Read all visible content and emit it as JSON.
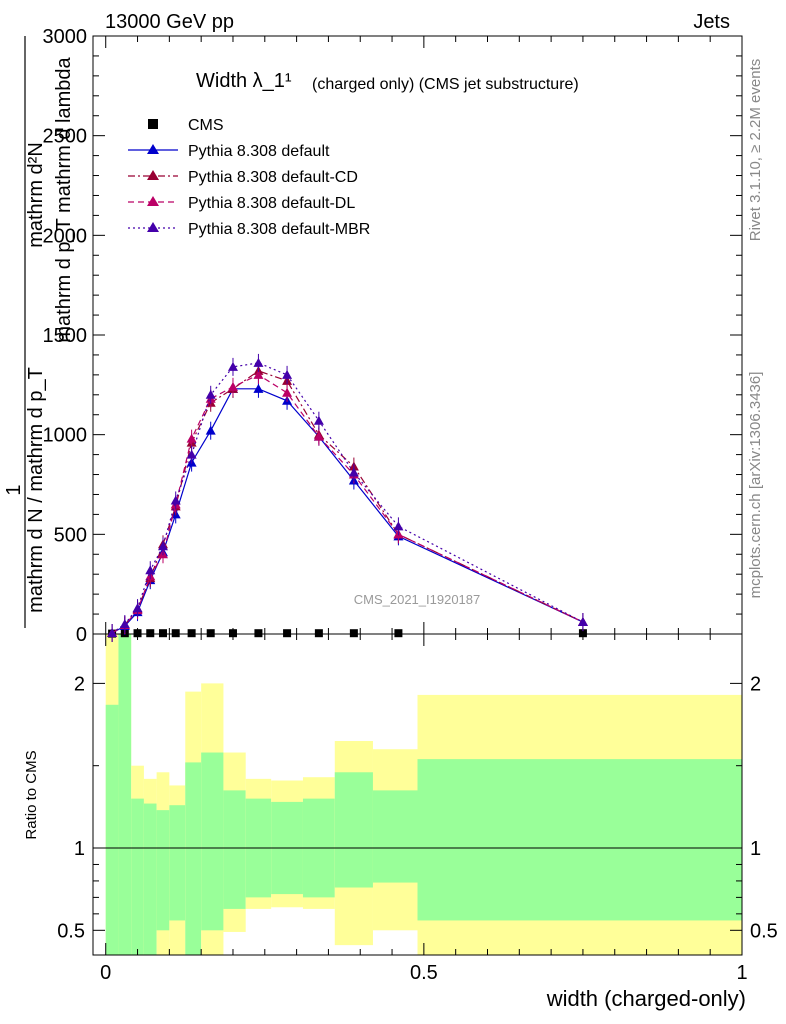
{
  "header": {
    "left": "13000 GeV pp",
    "right": "Jets"
  },
  "side_text": {
    "top": "Rivet 3.1.10, ≥ 2.2M events",
    "bottom": "mcplots.cern.ch [arXiv:1306.3436]"
  },
  "chart_data": [
    {
      "type": "line",
      "title": "Width λ_1¹",
      "subtitle": "(charged only) (CMS jet substructure)",
      "watermark": "CMS_2021_I1920187",
      "ylabel": {
        "num_top": "mathrm d²N",
        "num_bottom": "mathrm d p_T mathrm d lambda",
        "one": "1",
        "den": "mathrm d N / mathrm d p_T"
      },
      "xlim": [
        -0.02,
        1.0
      ],
      "ylim": [
        0,
        3000
      ],
      "yticks": [
        "0",
        "500",
        "1000",
        "1500",
        "2000",
        "2500",
        "3000"
      ],
      "legend_position": "top-left",
      "x": [
        0.01,
        0.03,
        0.05,
        0.07,
        0.09,
        0.11,
        0.135,
        0.165,
        0.2,
        0.24,
        0.285,
        0.335,
        0.39,
        0.46,
        0.75
      ],
      "series": [
        {
          "name": "CMS",
          "style": "marker",
          "color": "#000000",
          "values": [
            2,
            4,
            4,
            4,
            4,
            4,
            4,
            4,
            4,
            4,
            4,
            4,
            4,
            4,
            4
          ]
        },
        {
          "name": "Pythia 8.308 default",
          "style": "solid",
          "color": "#0000cc",
          "values": [
            5,
            40,
            110,
            270,
            410,
            600,
            860,
            1020,
            1230,
            1230,
            1170,
            990,
            770,
            490,
            60
          ]
        },
        {
          "name": "Pythia 8.308 default-CD",
          "style": "dashdot",
          "color": "#990033",
          "values": [
            5,
            45,
            125,
            280,
            450,
            640,
            960,
            1160,
            1230,
            1320,
            1270,
            1000,
            840,
            500,
            60
          ]
        },
        {
          "name": "Pythia 8.308 default-DL",
          "style": "dash",
          "color": "#bb0066",
          "values": [
            5,
            45,
            120,
            290,
            400,
            650,
            980,
            1180,
            1240,
            1300,
            1210,
            990,
            800,
            500,
            60
          ]
        },
        {
          "name": "Pythia 8.308 default-MBR",
          "style": "dot",
          "color": "#4400aa",
          "values": [
            5,
            50,
            130,
            320,
            440,
            670,
            900,
            1200,
            1340,
            1360,
            1300,
            1070,
            810,
            540,
            60
          ]
        }
      ]
    },
    {
      "type": "area",
      "ylabel": "Ratio to CMS",
      "xlabel": "width (charged-only)",
      "xlim": [
        -0.02,
        1.0
      ],
      "ylim": [
        0.35,
        2.3
      ],
      "xticks": [
        "0",
        "0.5",
        "1"
      ],
      "yticks": [
        "0.5",
        "1",
        "2"
      ],
      "reference": 1,
      "bins": [
        {
          "lo": 0.0,
          "hi": 0.02,
          "green": [
            0.35,
            1.87
          ],
          "yellow": [
            0.35,
            2.3
          ]
        },
        {
          "lo": 0.02,
          "hi": 0.04,
          "green": [
            0.35,
            2.3
          ],
          "yellow": [
            0.35,
            2.3
          ]
        },
        {
          "lo": 0.04,
          "hi": 0.06,
          "green": [
            0.35,
            1.3
          ],
          "yellow": [
            0.35,
            1.5
          ]
        },
        {
          "lo": 0.06,
          "hi": 0.08,
          "green": [
            0.35,
            1.27
          ],
          "yellow": [
            0.35,
            1.42
          ]
        },
        {
          "lo": 0.08,
          "hi": 0.1,
          "green": [
            0.5,
            1.23
          ],
          "yellow": [
            0.35,
            1.46
          ]
        },
        {
          "lo": 0.1,
          "hi": 0.125,
          "green": [
            0.56,
            1.26
          ],
          "yellow": [
            0.35,
            1.38
          ]
        },
        {
          "lo": 0.125,
          "hi": 0.15,
          "green": [
            0.35,
            1.52
          ],
          "yellow": [
            0.35,
            1.95
          ]
        },
        {
          "lo": 0.15,
          "hi": 0.185,
          "green": [
            0.5,
            1.58
          ],
          "yellow": [
            0.35,
            2.0
          ]
        },
        {
          "lo": 0.185,
          "hi": 0.22,
          "green": [
            0.63,
            1.35
          ],
          "yellow": [
            0.49,
            1.58
          ]
        },
        {
          "lo": 0.22,
          "hi": 0.26,
          "green": [
            0.7,
            1.3
          ],
          "yellow": [
            0.63,
            1.42
          ]
        },
        {
          "lo": 0.26,
          "hi": 0.31,
          "green": [
            0.72,
            1.28
          ],
          "yellow": [
            0.64,
            1.41
          ]
        },
        {
          "lo": 0.31,
          "hi": 0.36,
          "green": [
            0.7,
            1.3
          ],
          "yellow": [
            0.63,
            1.43
          ]
        },
        {
          "lo": 0.36,
          "hi": 0.42,
          "green": [
            0.76,
            1.46
          ],
          "yellow": [
            0.41,
            1.65
          ]
        },
        {
          "lo": 0.42,
          "hi": 0.49,
          "green": [
            0.79,
            1.35
          ],
          "yellow": [
            0.5,
            1.6
          ]
        },
        {
          "lo": 0.49,
          "hi": 1.0,
          "green": [
            0.56,
            1.54
          ],
          "yellow": [
            0.35,
            1.93
          ]
        }
      ]
    }
  ]
}
